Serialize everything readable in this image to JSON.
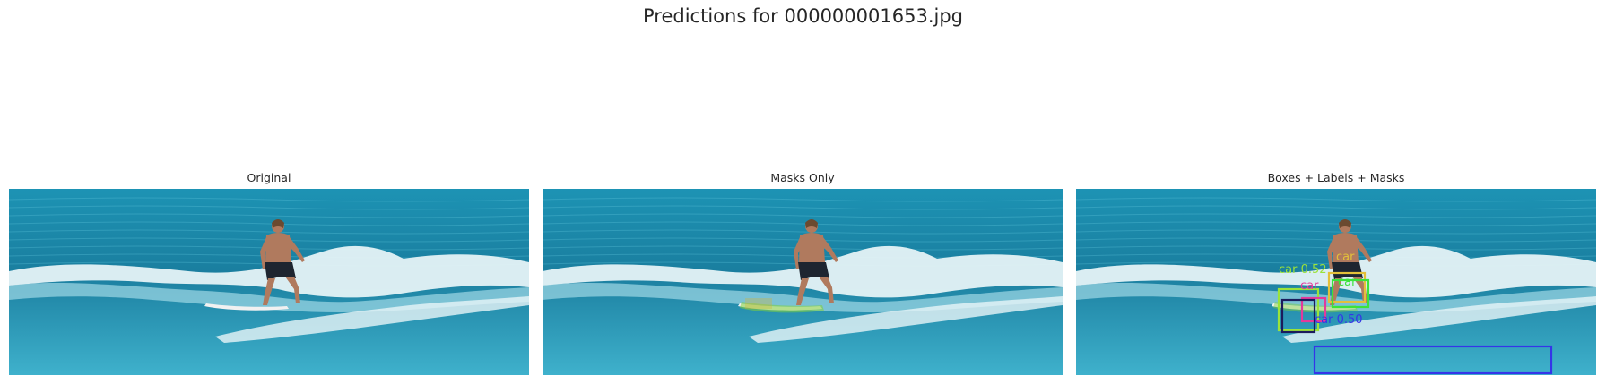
{
  "figure": {
    "title": "Predictions for 000000001653.jpg"
  },
  "panels": [
    {
      "title": "Original"
    },
    {
      "title": "Masks Only"
    },
    {
      "title": "Boxes + Labels + Masks"
    }
  ],
  "detections": [
    {
      "label": "car",
      "score": "0.50",
      "color": "#3535e8"
    },
    {
      "label": "car",
      "score": "0.52",
      "color": "#9be33a"
    },
    {
      "label": "car",
      "score": "",
      "color": "#e3c03a"
    },
    {
      "label": "car",
      "score": "",
      "color": "#3ae33a"
    },
    {
      "label": "car",
      "score": "",
      "color": "#e33a9b"
    },
    {
      "label": "car",
      "score": "",
      "color": "#1b1b5c"
    }
  ],
  "colors": {
    "sea_deep": "#1a7e9f",
    "sea_mid": "#1d93b4",
    "sea_light": "#3fb1cc",
    "foam": "#eaf6f8",
    "skin": "#b07a5e",
    "shorts": "#1e2530",
    "board": "#f1f1f1",
    "mask_green": "#7fcf3a"
  }
}
